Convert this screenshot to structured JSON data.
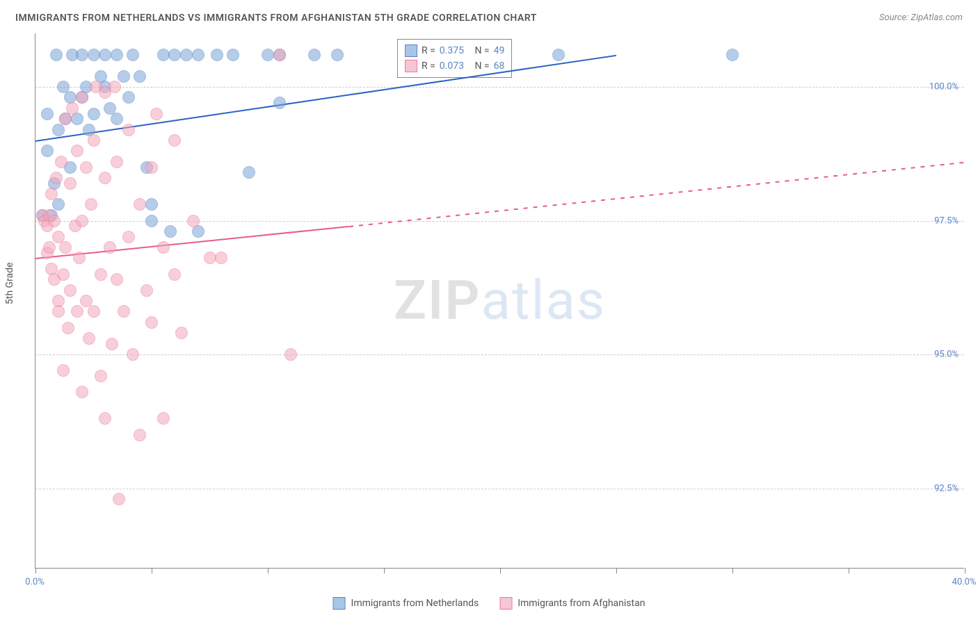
{
  "title": "IMMIGRANTS FROM NETHERLANDS VS IMMIGRANTS FROM AFGHANISTAN 5TH GRADE CORRELATION CHART",
  "source": "Source: ZipAtlas.com",
  "ylabel": "5th Grade",
  "watermark": {
    "part1": "ZIP",
    "part2": "atlas"
  },
  "chart": {
    "type": "scatter",
    "xlim": [
      0,
      40
    ],
    "ylim": [
      91,
      101
    ],
    "background_color": "#ffffff",
    "grid_color": "#cccccc",
    "axis_color": "#888888",
    "xticks": [
      0,
      5,
      10,
      15,
      20,
      25,
      30,
      35,
      40
    ],
    "xtick_labels": {
      "0": "0.0%",
      "40": "40.0%"
    },
    "yticks": [
      92.5,
      95.0,
      97.5,
      100.0
    ],
    "ytick_labels": [
      "92.5%",
      "95.0%",
      "97.5%",
      "100.0%"
    ],
    "marker_size": 18,
    "marker_opacity": 0.55
  },
  "series": [
    {
      "name": "Immigrants from Netherlands",
      "color_fill": "#7ba5d8",
      "color_stroke": "#5b83c4",
      "swatch_fill": "#a8c5e8",
      "r": "0.375",
      "n": "49",
      "trend": {
        "x1": 0,
        "y1": 99.0,
        "x2": 25,
        "y2": 100.6,
        "color": "#2962c4",
        "width": 2,
        "style": "solid"
      },
      "points": [
        [
          0.3,
          97.6
        ],
        [
          0.5,
          98.8
        ],
        [
          0.5,
          99.5
        ],
        [
          0.7,
          97.6
        ],
        [
          0.8,
          98.2
        ],
        [
          0.9,
          100.6
        ],
        [
          1.0,
          97.8
        ],
        [
          1.0,
          99.2
        ],
        [
          1.2,
          100.0
        ],
        [
          1.3,
          99.4
        ],
        [
          1.5,
          98.5
        ],
        [
          1.5,
          99.8
        ],
        [
          1.6,
          100.6
        ],
        [
          1.8,
          99.4
        ],
        [
          2.0,
          99.8
        ],
        [
          2.0,
          100.6
        ],
        [
          2.2,
          100.0
        ],
        [
          2.3,
          99.2
        ],
        [
          2.5,
          100.6
        ],
        [
          2.5,
          99.5
        ],
        [
          2.8,
          100.2
        ],
        [
          3.0,
          100.0
        ],
        [
          3.0,
          100.6
        ],
        [
          3.2,
          99.6
        ],
        [
          3.5,
          100.6
        ],
        [
          3.5,
          99.4
        ],
        [
          3.8,
          100.2
        ],
        [
          4.0,
          99.8
        ],
        [
          4.2,
          100.6
        ],
        [
          4.5,
          100.2
        ],
        [
          4.8,
          98.5
        ],
        [
          5.0,
          97.5
        ],
        [
          5.0,
          97.8
        ],
        [
          5.5,
          100.6
        ],
        [
          5.8,
          97.3
        ],
        [
          6.0,
          100.6
        ],
        [
          6.5,
          100.6
        ],
        [
          7.0,
          100.6
        ],
        [
          7.0,
          97.3
        ],
        [
          7.8,
          100.6
        ],
        [
          8.5,
          100.6
        ],
        [
          9.2,
          98.4
        ],
        [
          10.0,
          100.6
        ],
        [
          10.5,
          100.6
        ],
        [
          10.5,
          99.7
        ],
        [
          12.0,
          100.6
        ],
        [
          13.0,
          100.6
        ],
        [
          22.5,
          100.6
        ],
        [
          30.0,
          100.6
        ]
      ]
    },
    {
      "name": "Immigrants from Afghanistan",
      "color_fill": "#f4a8bb",
      "color_stroke": "#e87a9a",
      "swatch_fill": "#f7c5d4",
      "r": "0.073",
      "n": "68",
      "trend_solid": {
        "x1": 0,
        "y1": 96.8,
        "x2": 13.5,
        "y2": 97.4,
        "color": "#e85a8a",
        "width": 2
      },
      "trend_dash": {
        "x1": 13.5,
        "y1": 97.4,
        "x2": 40,
        "y2": 98.6,
        "color": "#e85a8a",
        "width": 1.5
      },
      "points": [
        [
          0.3,
          97.6
        ],
        [
          0.4,
          97.5
        ],
        [
          0.5,
          97.4
        ],
        [
          0.5,
          96.9
        ],
        [
          0.6,
          97.6
        ],
        [
          0.6,
          97.0
        ],
        [
          0.7,
          96.6
        ],
        [
          0.7,
          98.0
        ],
        [
          0.8,
          97.5
        ],
        [
          0.8,
          96.4
        ],
        [
          0.9,
          98.3
        ],
        [
          1.0,
          96.0
        ],
        [
          1.0,
          97.2
        ],
        [
          1.0,
          95.8
        ],
        [
          1.1,
          98.6
        ],
        [
          1.2,
          96.5
        ],
        [
          1.2,
          94.7
        ],
        [
          1.3,
          97.0
        ],
        [
          1.3,
          99.4
        ],
        [
          1.4,
          95.5
        ],
        [
          1.5,
          98.2
        ],
        [
          1.5,
          96.2
        ],
        [
          1.6,
          99.6
        ],
        [
          1.7,
          97.4
        ],
        [
          1.8,
          95.8
        ],
        [
          1.8,
          98.8
        ],
        [
          1.9,
          96.8
        ],
        [
          2.0,
          94.3
        ],
        [
          2.0,
          97.5
        ],
        [
          2.0,
          99.8
        ],
        [
          2.2,
          96.0
        ],
        [
          2.2,
          98.5
        ],
        [
          2.3,
          95.3
        ],
        [
          2.4,
          97.8
        ],
        [
          2.5,
          99.0
        ],
        [
          2.5,
          95.8
        ],
        [
          2.6,
          100.0
        ],
        [
          2.8,
          96.5
        ],
        [
          2.8,
          94.6
        ],
        [
          3.0,
          98.3
        ],
        [
          3.0,
          93.8
        ],
        [
          3.0,
          99.9
        ],
        [
          3.2,
          97.0
        ],
        [
          3.3,
          95.2
        ],
        [
          3.4,
          100.0
        ],
        [
          3.5,
          96.4
        ],
        [
          3.5,
          98.6
        ],
        [
          3.6,
          92.3
        ],
        [
          3.8,
          95.8
        ],
        [
          4.0,
          97.2
        ],
        [
          4.0,
          99.2
        ],
        [
          4.2,
          95.0
        ],
        [
          4.5,
          97.8
        ],
        [
          4.5,
          93.5
        ],
        [
          4.8,
          96.2
        ],
        [
          5.0,
          98.5
        ],
        [
          5.0,
          95.6
        ],
        [
          5.2,
          99.5
        ],
        [
          5.5,
          97.0
        ],
        [
          5.5,
          93.8
        ],
        [
          6.0,
          96.5
        ],
        [
          6.0,
          99.0
        ],
        [
          6.3,
          95.4
        ],
        [
          6.8,
          97.5
        ],
        [
          7.5,
          96.8
        ],
        [
          8.0,
          96.8
        ],
        [
          10.5,
          100.6
        ],
        [
          11.0,
          95.0
        ]
      ]
    }
  ],
  "stats_legend": {
    "r_label": "R =",
    "n_label": "N ="
  },
  "bottom_legend": [
    "Immigrants from Netherlands",
    "Immigrants from Afghanistan"
  ]
}
